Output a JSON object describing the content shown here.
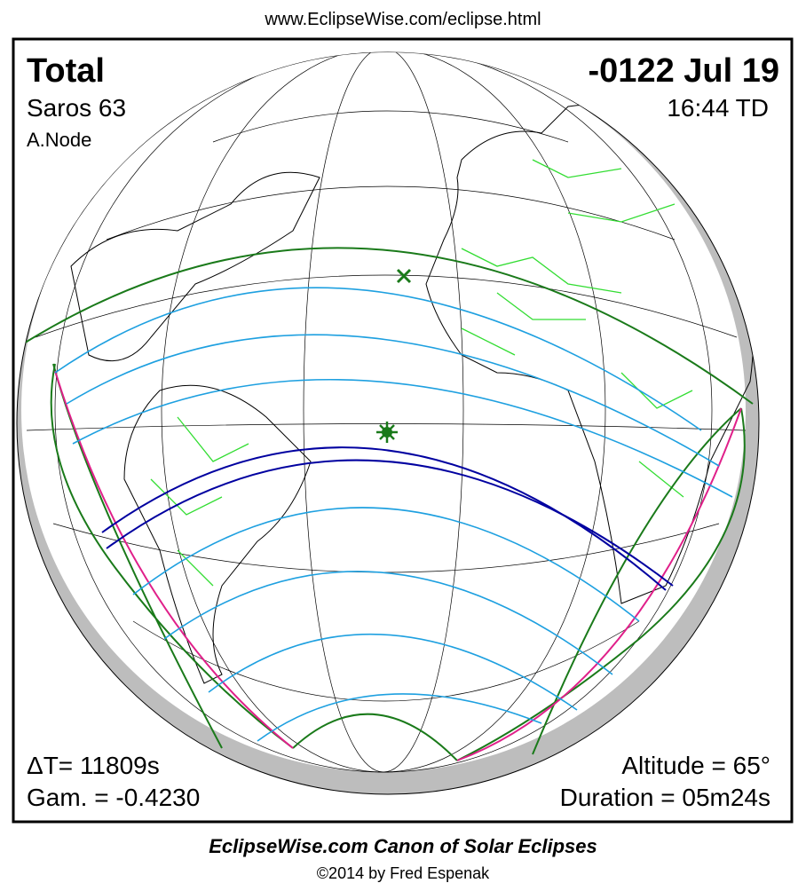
{
  "header": {
    "url": "www.EclipseWise.com/eclipse.html"
  },
  "panel": {
    "eclipse_type": "Total",
    "saros": "Saros  63",
    "node": "A.Node",
    "date": "-0122 Jul 19",
    "time": "16:44 TD",
    "delta_t": "ΔT=  11809s",
    "gamma": "Gam. = -0.4230",
    "altitude": "Altitude = 65°",
    "duration": "Duration = 05m24s"
  },
  "footer": {
    "title": "EclipseWise.com Canon of Solar Eclipses",
    "copyright": "©2014 by Fred Espenak"
  }
}
